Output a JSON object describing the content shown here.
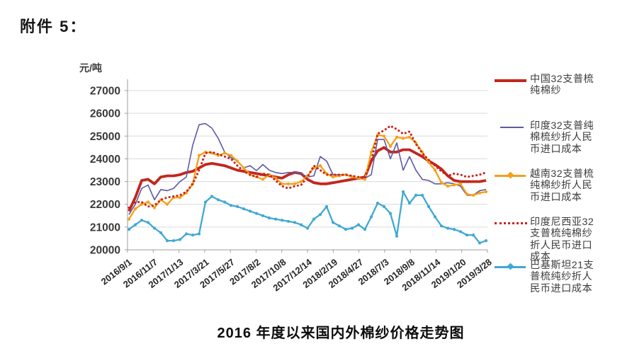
{
  "attachment_label": "附件 5：",
  "title": "2016 年度以来国内外棉纱价格走势图",
  "chart_data": {
    "type": "line",
    "unit_label": "元/吨",
    "ylabel": "元/吨",
    "xlabel": "",
    "ylim": [
      20000,
      27000
    ],
    "yticks": [
      27000,
      26000,
      25000,
      24000,
      23000,
      22000,
      21000,
      20000
    ],
    "grid": true,
    "legend_position": "right",
    "x_sampling": "57 evenly spaced weekly samples between the first and last x tick",
    "categories": [
      "2016/9/1",
      "2016/11/7",
      "2017/1/13",
      "2017/3/21",
      "2017/5/27",
      "2017/8/2",
      "2017/10/8",
      "2017/12/14",
      "2018/2/19",
      "2018/4/27",
      "2018/7/3",
      "2018/9/8",
      "2018/11/14",
      "2019/1/20",
      "2019/3/28"
    ],
    "series": [
      {
        "name": "中国32支普梳纯棉纱",
        "legend_lines": [
          "中国32支普梳",
          "纯棉纱"
        ],
        "color": "#c1271d",
        "style": "thick",
        "values": [
          21700,
          22300,
          23050,
          23100,
          22900,
          23200,
          23250,
          23250,
          23300,
          23400,
          23450,
          23600,
          23750,
          23800,
          23750,
          23700,
          23600,
          23500,
          23450,
          23400,
          23350,
          23300,
          23250,
          23200,
          23150,
          23300,
          23400,
          23350,
          23100,
          22950,
          22900,
          22900,
          22950,
          23000,
          23050,
          23100,
          23150,
          23200,
          23900,
          24350,
          24500,
          24300,
          24300,
          24400,
          24400,
          24250,
          24100,
          23900,
          23750,
          23550,
          23250,
          23050,
          23000,
          23000,
          23000,
          23000,
          23050
        ]
      },
      {
        "name": "印度32支普纯棉梳纱折人民币进口成本",
        "legend_lines": [
          "印度32支普纯",
          "棉梳纱折人民",
          "币进口成本"
        ],
        "color": "#5d5aa5",
        "style": "thin",
        "values": [
          21550,
          22000,
          22700,
          22850,
          22200,
          22650,
          22600,
          22700,
          23000,
          23200,
          24600,
          25500,
          25550,
          25350,
          24900,
          24300,
          24050,
          23900,
          23600,
          23700,
          23480,
          23750,
          23500,
          23400,
          23350,
          23400,
          23400,
          23350,
          23200,
          23250,
          24100,
          23900,
          23300,
          23300,
          23300,
          23250,
          23100,
          23150,
          23300,
          24850,
          24850,
          24000,
          24700,
          23500,
          24100,
          23500,
          23100,
          23050,
          22900,
          22900,
          22950,
          22900,
          22800,
          22400,
          22400,
          22600,
          22650
        ]
      },
      {
        "name": "越南32支普梳纯棉纱折人民币进口成本",
        "legend_lines": [
          "越南32支普梳",
          "纯棉纱折人民",
          "币进口成本"
        ],
        "color": "#f4a019",
        "style": "marker",
        "values": [
          21350,
          21800,
          22000,
          22100,
          21850,
          22200,
          22000,
          22300,
          22300,
          22500,
          22900,
          24150,
          24300,
          24250,
          24150,
          24250,
          24150,
          23900,
          23600,
          23300,
          23200,
          23100,
          23300,
          23150,
          22900,
          22900,
          22900,
          23000,
          23250,
          23600,
          23700,
          23350,
          23200,
          23250,
          23300,
          23200,
          23150,
          23100,
          24300,
          25050,
          25000,
          24550,
          24950,
          24900,
          24950,
          24700,
          24300,
          23850,
          23500,
          22950,
          22800,
          22850,
          22900,
          22450,
          22400,
          22500,
          22550
        ]
      },
      {
        "name": "印度尼西亚32支普梳纯棉纱折人民币进口成本",
        "legend_lines": [
          "印度尼西亚32",
          "支普梳纯棉纱",
          "折人民币进口",
          "成本"
        ],
        "color": "#cc2218",
        "style": "dotted",
        "values": [
          21850,
          22100,
          22100,
          21900,
          21950,
          22200,
          22300,
          22350,
          22400,
          22550,
          22900,
          23500,
          24250,
          24300,
          24200,
          24100,
          24000,
          23700,
          23450,
          23300,
          23200,
          23350,
          23300,
          23050,
          22800,
          22700,
          22800,
          22850,
          23200,
          23700,
          23500,
          23300,
          23300,
          23300,
          23300,
          23250,
          23200,
          23150,
          23900,
          25100,
          25250,
          25450,
          25300,
          25100,
          25200,
          24650,
          24250,
          23950,
          23700,
          23450,
          23250,
          23350,
          23300,
          23200,
          23250,
          23300,
          23400
        ]
      },
      {
        "name": "巴基斯坦21支普梳纯纱折人民币进口成本",
        "legend_lines": [
          "巴基斯坦21支",
          "普梳纯纱折人",
          "民币进口成本"
        ],
        "color": "#3fa8d4",
        "style": "marker",
        "values": [
          20900,
          21100,
          21300,
          21200,
          20950,
          20750,
          20400,
          20400,
          20450,
          20700,
          20650,
          20700,
          22100,
          22350,
          22200,
          22100,
          21950,
          21900,
          21800,
          21700,
          21600,
          21500,
          21400,
          21350,
          21300,
          21250,
          21200,
          21100,
          20950,
          21350,
          21550,
          21900,
          21200,
          21050,
          20900,
          20950,
          21100,
          20900,
          21450,
          22050,
          21900,
          21600,
          20600,
          22550,
          22050,
          22400,
          22400,
          21900,
          21450,
          21050,
          20950,
          20900,
          20800,
          20650,
          20650,
          20300,
          20400
        ]
      }
    ]
  }
}
